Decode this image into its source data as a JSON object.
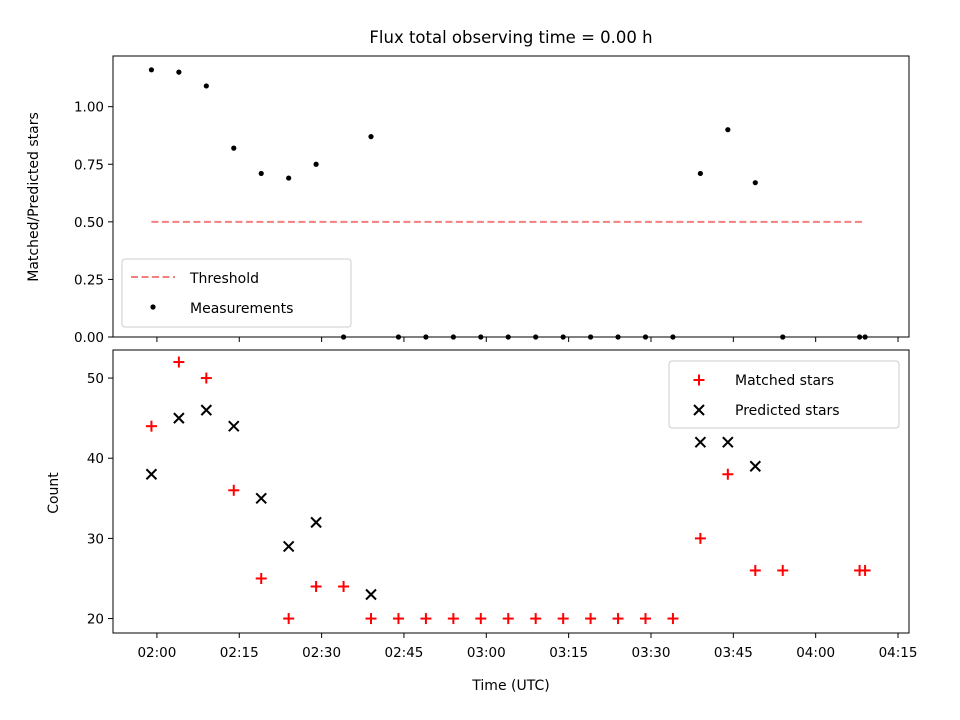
{
  "chart_data": [
    {
      "type": "scatter",
      "title": "Flux total observing time = 0.00 h",
      "xlabel": "",
      "ylabel": "Matched/Predicted stars",
      "ylim": [
        0,
        1.22
      ],
      "yticks": [
        "0.00",
        "0.25",
        "0.50",
        "0.75",
        "1.00"
      ],
      "legend_position": "lower-left",
      "threshold": {
        "name": "Threshold",
        "value": 0.5,
        "color": "#f47f7f",
        "x_start": "01:59",
        "x_end": "04:09"
      },
      "series": [
        {
          "name": "Measurements",
          "color": "#000000",
          "marker": "dot",
          "x": [
            "01:59",
            "02:04",
            "02:09",
            "02:14",
            "02:19",
            "02:24",
            "02:29",
            "02:34",
            "02:39",
            "02:44",
            "02:49",
            "02:54",
            "02:59",
            "03:04",
            "03:09",
            "03:14",
            "03:19",
            "03:24",
            "03:29",
            "03:34",
            "03:39",
            "03:44",
            "03:49",
            "03:54",
            "04:08",
            "04:09"
          ],
          "y": [
            1.16,
            1.15,
            1.09,
            0.82,
            0.71,
            0.69,
            0.75,
            0.0,
            0.87,
            0.0,
            0.0,
            0.0,
            0.0,
            0.0,
            0.0,
            0.0,
            0.0,
            0.0,
            0.0,
            0.0,
            0.71,
            0.9,
            0.67,
            0.0,
            0.0,
            0.0
          ]
        }
      ]
    },
    {
      "type": "scatter",
      "title": "",
      "xlabel": "Time (UTC)",
      "ylabel": "Count",
      "ylim": [
        18.2,
        53.5
      ],
      "yticks": [
        "20",
        "30",
        "40",
        "50"
      ],
      "xlim": [
        "01:52",
        "04:17"
      ],
      "xticks": [
        "02:00",
        "02:15",
        "02:30",
        "02:45",
        "03:00",
        "03:15",
        "03:30",
        "03:45",
        "04:00",
        "04:15"
      ],
      "legend_position": "upper-right",
      "series": [
        {
          "name": "Matched stars",
          "color": "#ff0000",
          "marker": "plus",
          "x": [
            "01:59",
            "02:04",
            "02:09",
            "02:14",
            "02:19",
            "02:24",
            "02:29",
            "02:34",
            "02:39",
            "02:44",
            "02:49",
            "02:54",
            "02:59",
            "03:04",
            "03:09",
            "03:14",
            "03:19",
            "03:24",
            "03:29",
            "03:34",
            "03:39",
            "03:44",
            "03:49",
            "03:54",
            "04:08",
            "04:09"
          ],
          "y": [
            44,
            52,
            50,
            36,
            25,
            20,
            24,
            24,
            20,
            20,
            20,
            20,
            20,
            20,
            20,
            20,
            20,
            20,
            20,
            20,
            30,
            38,
            26,
            26,
            26,
            26
          ]
        },
        {
          "name": "Predicted stars",
          "color": "#000000",
          "marker": "x",
          "x": [
            "01:59",
            "02:04",
            "02:09",
            "02:14",
            "02:19",
            "02:24",
            "02:29",
            "02:39",
            "03:39",
            "03:44",
            "03:49"
          ],
          "y": [
            38,
            45,
            46,
            44,
            35,
            29,
            32,
            23,
            42,
            42,
            39
          ]
        }
      ]
    }
  ]
}
